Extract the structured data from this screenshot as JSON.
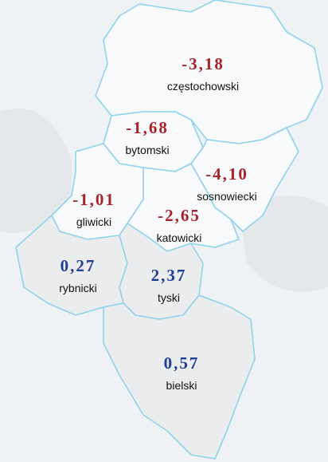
{
  "regions": [
    {
      "name": "częstochowski",
      "value": "-3,18",
      "color": "#a8222b"
    },
    {
      "name": "bytomski",
      "value": "-1,68",
      "color": "#a8222b"
    },
    {
      "name": "sosnowiecki",
      "value": "-4,10",
      "color": "#a8222b"
    },
    {
      "name": "gliwicki",
      "value": "-1,01",
      "color": "#a8222b"
    },
    {
      "name": "katowicki",
      "value": "-2,65",
      "color": "#a8222b"
    },
    {
      "name": "rybnicki",
      "value": "0,27",
      "color": "#1d3f94"
    },
    {
      "name": "tyski",
      "value": "2,37",
      "color": "#1d3f94"
    },
    {
      "name": "bielski",
      "value": "0,57",
      "color": "#1d3f94"
    }
  ]
}
